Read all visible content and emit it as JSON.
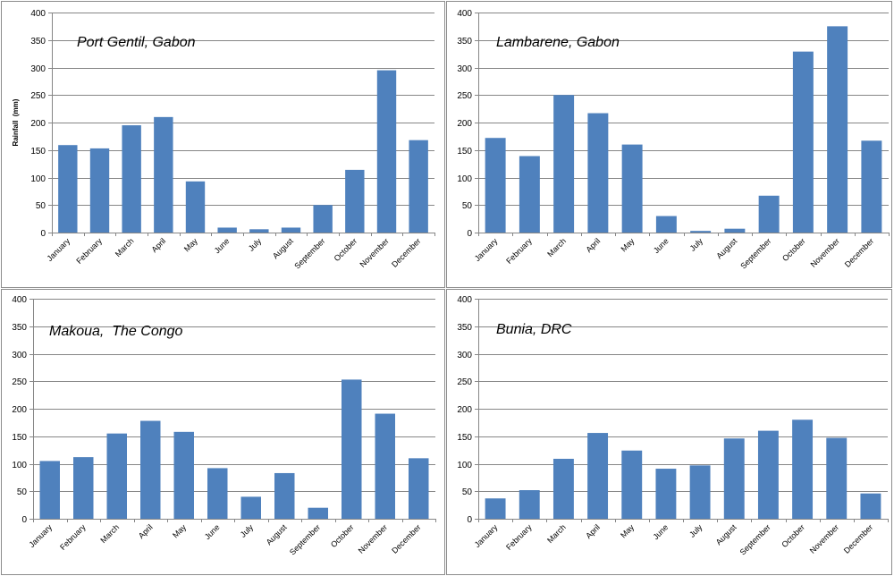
{
  "colors": {
    "bar": "#4f81bd",
    "grid": "#868686",
    "border": "#8c8c8c"
  },
  "chart_data": [
    {
      "type": "bar",
      "title": "Port Gentil, Gabon",
      "xlabel": "",
      "ylabel": "Rainfall  (mm)",
      "ylim": [
        0,
        400
      ],
      "yticks": [
        0,
        50,
        100,
        150,
        200,
        250,
        300,
        350,
        400
      ],
      "grid": true,
      "categories": [
        "January",
        "February",
        "March",
        "April",
        "May",
        "June",
        "July",
        "August",
        "September",
        "October",
        "November",
        "December"
      ],
      "values": [
        159,
        153,
        195,
        210,
        93,
        9,
        6,
        9,
        50,
        114,
        295,
        168
      ]
    },
    {
      "type": "bar",
      "title": "Lambarene, Gabon",
      "xlabel": "",
      "ylabel": "",
      "ylim": [
        0,
        400
      ],
      "yticks": [
        0,
        50,
        100,
        150,
        200,
        250,
        300,
        350,
        400
      ],
      "grid": true,
      "categories": [
        "January",
        "February",
        "March",
        "April",
        "May",
        "June",
        "July",
        "August",
        "September",
        "October",
        "November",
        "December"
      ],
      "values": [
        172,
        139,
        250,
        217,
        160,
        30,
        3,
        7,
        67,
        329,
        375,
        167
      ]
    },
    {
      "type": "bar",
      "title": "Makoua,  The Congo",
      "xlabel": "",
      "ylabel": "",
      "ylim": [
        0,
        400
      ],
      "yticks": [
        0,
        50,
        100,
        150,
        200,
        250,
        300,
        350,
        400
      ],
      "grid": true,
      "categories": [
        "January",
        "February",
        "March",
        "April",
        "May",
        "June",
        "July",
        "August",
        "September",
        "October",
        "November",
        "December"
      ],
      "values": [
        105,
        112,
        155,
        178,
        158,
        92,
        40,
        83,
        20,
        253,
        191,
        110
      ]
    },
    {
      "type": "bar",
      "title": "Bunia, DRC",
      "xlabel": "",
      "ylabel": "",
      "ylim": [
        0,
        400
      ],
      "yticks": [
        0,
        50,
        100,
        150,
        200,
        250,
        300,
        350,
        400
      ],
      "grid": true,
      "categories": [
        "January",
        "February",
        "March",
        "April",
        "May",
        "June",
        "July",
        "August",
        "September",
        "October",
        "November",
        "December"
      ],
      "values": [
        37,
        52,
        109,
        156,
        124,
        91,
        97,
        146,
        160,
        180,
        147,
        46
      ]
    }
  ]
}
